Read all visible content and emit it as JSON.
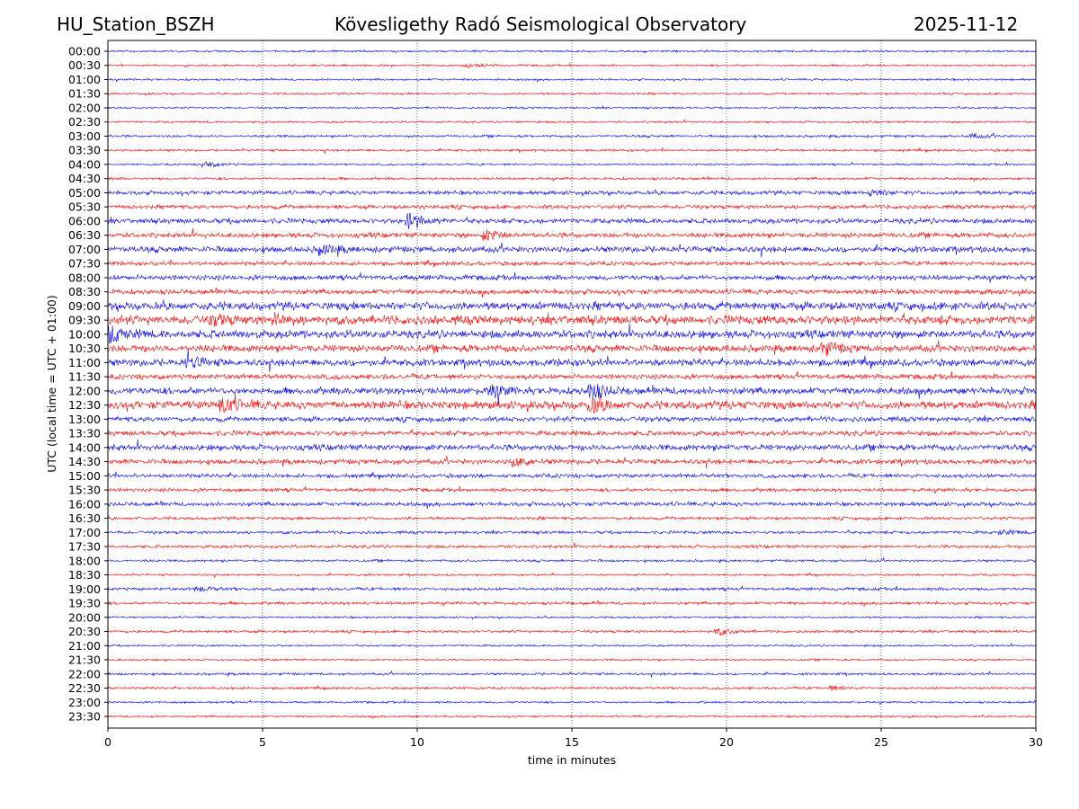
{
  "header": {
    "station": "HU_Station_BSZH",
    "title": "Kövesligethy Radó Seismological Observatory",
    "date": "2025-11-12"
  },
  "chart_data": {
    "type": "line",
    "title": "Kövesligethy Radó Seismological Observatory",
    "xlabel": "time in minutes",
    "ylabel": "UTC (local time = UTC + 01:00)",
    "xlim": [
      0,
      30
    ],
    "x_ticks": [
      "0",
      "5",
      "10",
      "15",
      "20",
      "25",
      "30"
    ],
    "grid": "vertical dotted lines at 5-minute ticks",
    "colors": {
      "even_trace": "#0000ff",
      "odd_trace": "#ff0000"
    },
    "rows": [
      "00:00",
      "00:30",
      "01:00",
      "01:30",
      "02:00",
      "02:30",
      "03:00",
      "03:30",
      "04:00",
      "04:30",
      "05:00",
      "05:30",
      "06:00",
      "06:30",
      "07:00",
      "07:30",
      "08:00",
      "08:30",
      "09:00",
      "09:30",
      "10:00",
      "10:30",
      "11:00",
      "11:30",
      "12:00",
      "12:30",
      "13:00",
      "13:30",
      "14:00",
      "14:30",
      "15:00",
      "15:30",
      "16:00",
      "16:30",
      "17:00",
      "17:30",
      "18:00",
      "18:30",
      "19:00",
      "19:30",
      "20:00",
      "20:30",
      "21:00",
      "21:30",
      "22:00",
      "22:30",
      "23:00",
      "23:30"
    ],
    "noise_level": [
      1,
      1,
      1,
      1,
      1,
      1,
      1.2,
      1.2,
      1,
      1.3,
      2,
      2,
      2.5,
      2.5,
      3,
      2,
      2.5,
      2.5,
      4,
      4.5,
      4,
      3.5,
      3.5,
      2.5,
      3.5,
      4,
      2.5,
      2.5,
      3,
      2.5,
      2,
      1.8,
      2,
      1.5,
      1.5,
      1.5,
      1.2,
      1,
      1.5,
      1.5,
      1,
      1.3,
      1,
      1,
      1.2,
      1.2,
      1,
      1
    ],
    "events": [
      {
        "row": "00:30",
        "minute": 11.7,
        "strength": 2
      },
      {
        "row": "03:00",
        "minute": 28,
        "strength": 2
      },
      {
        "row": "04:00",
        "minute": 3.2,
        "strength": 3
      },
      {
        "row": "05:00",
        "minute": 24.8,
        "strength": 3
      },
      {
        "row": "06:00",
        "minute": 9.8,
        "strength": 8
      },
      {
        "row": "06:30",
        "minute": 12.3,
        "strength": 5
      },
      {
        "row": "07:00",
        "minute": 7,
        "strength": 4
      },
      {
        "row": "09:30",
        "minute": 3.5,
        "strength": 4
      },
      {
        "row": "09:30",
        "minute": 5.5,
        "strength": 4
      },
      {
        "row": "10:00",
        "minute": 0.1,
        "strength": 8
      },
      {
        "row": "10:30",
        "minute": 23.2,
        "strength": 6
      },
      {
        "row": "11:00",
        "minute": 2.7,
        "strength": 5
      },
      {
        "row": "12:00",
        "minute": 12.5,
        "strength": 5
      },
      {
        "row": "12:00",
        "minute": 15.7,
        "strength": 7
      },
      {
        "row": "12:30",
        "minute": 3.8,
        "strength": 7
      },
      {
        "row": "12:30",
        "minute": 15.7,
        "strength": 7
      },
      {
        "row": "14:30",
        "minute": 13.2,
        "strength": 4
      },
      {
        "row": "17:00",
        "minute": 29,
        "strength": 2
      },
      {
        "row": "19:00",
        "minute": 3,
        "strength": 2
      },
      {
        "row": "20:30",
        "minute": 19.8,
        "strength": 3
      },
      {
        "row": "22:30",
        "minute": 23.5,
        "strength": 2
      }
    ]
  }
}
